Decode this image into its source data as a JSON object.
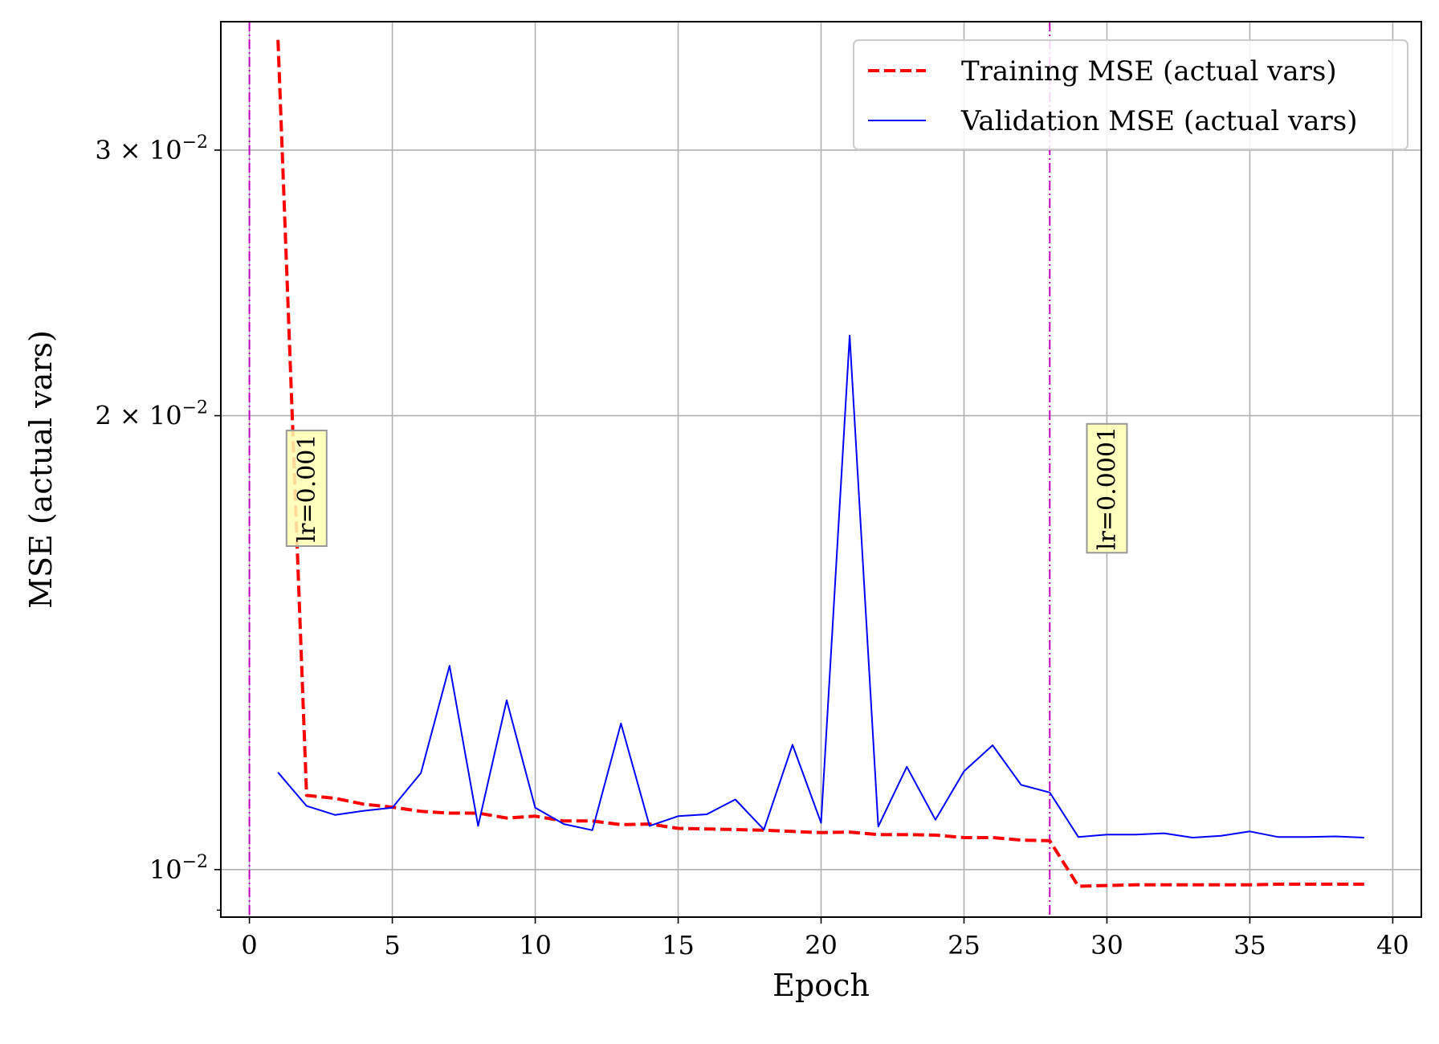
{
  "chart_data": {
    "type": "line",
    "xlabel": "Epoch",
    "ylabel": "MSE (actual vars)",
    "xlim": [
      -1,
      41
    ],
    "ylim": [
      0.0093,
      0.0365
    ],
    "yscale": "log",
    "grid": true,
    "legend_position": "top-right",
    "x_ticks": [
      0,
      5,
      10,
      15,
      20,
      25,
      30,
      35,
      40
    ],
    "x_tick_labels": [
      "0",
      "5",
      "10",
      "15",
      "20",
      "25",
      "30",
      "35",
      "40"
    ],
    "y_ticks": [
      0.01,
      0.02,
      0.03
    ],
    "y_tick_labels": [
      {
        "base": "10",
        "exp": "−2",
        "mantissa": ""
      },
      {
        "base": "10",
        "exp": "−2",
        "mantissa": "2 × "
      },
      {
        "base": "10",
        "exp": "−2",
        "mantissa": "3 × "
      }
    ],
    "series": [
      {
        "name": "Training MSE (actual vars)",
        "color": "#ff0000",
        "style": "dashed",
        "x": [
          1,
          2,
          3,
          4,
          5,
          6,
          7,
          8,
          9,
          10,
          11,
          12,
          13,
          14,
          15,
          16,
          17,
          18,
          19,
          20,
          21,
          22,
          23,
          24,
          25,
          26,
          27,
          28,
          29,
          30,
          31,
          32,
          33,
          34,
          35,
          36,
          37,
          38,
          39
        ],
        "y": [
          0.0355,
          0.0112,
          0.01115,
          0.01105,
          0.011,
          0.01093,
          0.0109,
          0.0109,
          0.01082,
          0.01085,
          0.01077,
          0.01077,
          0.01071,
          0.01072,
          0.01065,
          0.01064,
          0.01063,
          0.01062,
          0.0106,
          0.01058,
          0.01059,
          0.01055,
          0.01055,
          0.01054,
          0.0105,
          0.0105,
          0.01046,
          0.01045,
          0.00975,
          0.00976,
          0.00977,
          0.00977,
          0.00977,
          0.00977,
          0.00977,
          0.00978,
          0.00978,
          0.00978,
          0.00978
        ]
      },
      {
        "name": "Validation MSE (actual vars)",
        "color": "#0000ff",
        "style": "solid",
        "x": [
          1,
          2,
          3,
          4,
          5,
          6,
          7,
          8,
          9,
          10,
          11,
          12,
          13,
          14,
          15,
          16,
          17,
          18,
          19,
          20,
          21,
          22,
          23,
          24,
          25,
          26,
          27,
          28,
          29,
          30,
          31,
          32,
          33,
          34,
          35,
          36,
          37,
          38,
          39
        ],
        "y": [
          0.0116,
          0.01102,
          0.01087,
          0.01094,
          0.01099,
          0.01159,
          0.01365,
          0.01069,
          0.01295,
          0.01099,
          0.01072,
          0.01062,
          0.0125,
          0.01069,
          0.01085,
          0.01088,
          0.01113,
          0.01063,
          0.0121,
          0.01074,
          0.0226,
          0.01068,
          0.0117,
          0.01079,
          0.01162,
          0.01209,
          0.01138,
          0.01125,
          0.01051,
          0.01055,
          0.01055,
          0.01057,
          0.0105,
          0.01053,
          0.0106,
          0.01051,
          0.01051,
          0.01052,
          0.0105
        ]
      }
    ],
    "vlines": [
      {
        "x": 0,
        "color": "#bf00bf",
        "style": "dashdot"
      },
      {
        "x": 28,
        "color": "#bf00bf",
        "style": "dashdot"
      }
    ],
    "annotations": [
      {
        "text": "lr=0.001",
        "x": 2,
        "y_center": 0.0179,
        "rotation": 90
      },
      {
        "text": "lr=0.0001",
        "x": 30,
        "y_center": 0.0179,
        "rotation": 90
      }
    ],
    "annotation_box_color": "#ffffb3",
    "annotation_border_color": "#999999"
  }
}
